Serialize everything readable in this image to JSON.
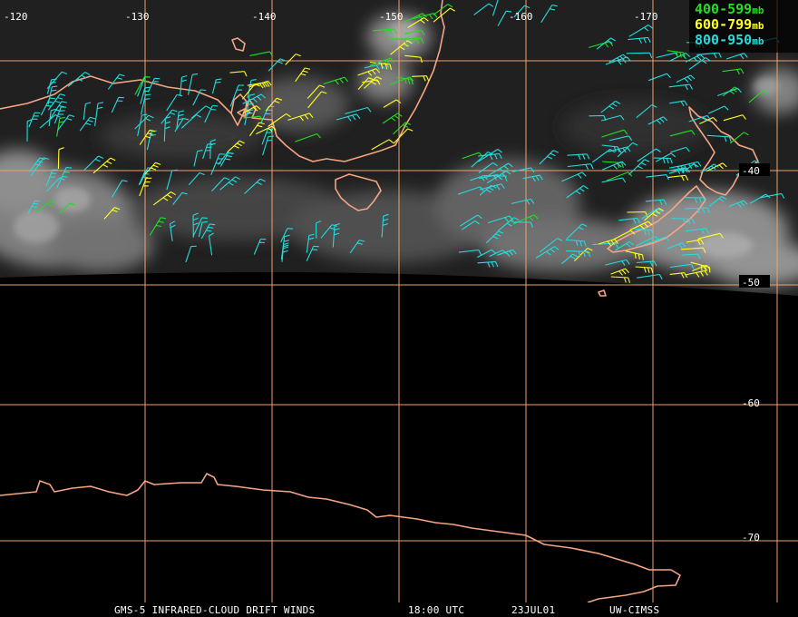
{
  "lon_labels": [
    "-120",
    "-130",
    "-140",
    "-150",
    "-160",
    "-170"
  ],
  "lat_labels": [
    "-40",
    "-50",
    "-60",
    "-70"
  ],
  "legend": [
    {
      "label": "400-599",
      "unit": "mb",
      "color": "#22dd22"
    },
    {
      "label": "600-799",
      "unit": "mb",
      "color": "#ffff22"
    },
    {
      "label": "800-950",
      "unit": "mb",
      "color": "#22dddd"
    }
  ],
  "footer": {
    "product": "GMS-5 INFRARED-CLOUD DRIFT WINDS",
    "time": "18:00 UTC",
    "date": "23JUL01",
    "source": "UW-CIMSS"
  }
}
